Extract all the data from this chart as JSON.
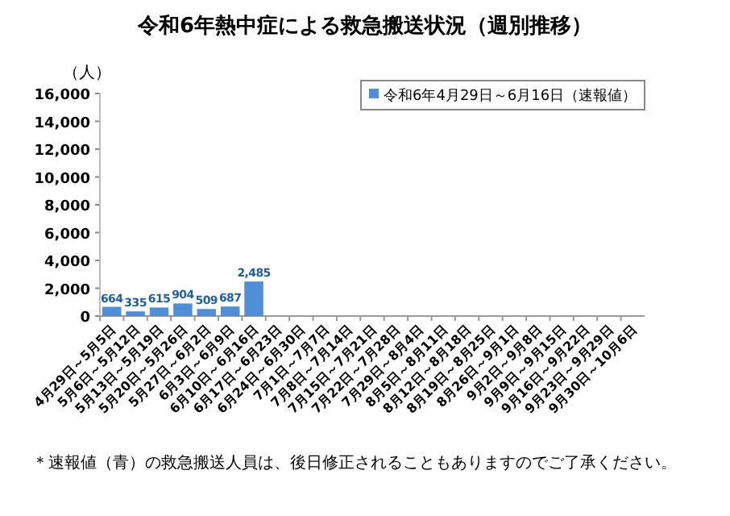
{
  "chart_data": {
    "type": "bar",
    "title": "令和6年熱中症による救急搬送状況（週別推移）",
    "ylabel": "（人）",
    "categories": [
      "4月29日～5月5日",
      "5月6日～5月12日",
      "5月13日～5月19日",
      "5月20日～5月26日",
      "5月27日～6月2日",
      "6月3日～6月9日",
      "6月10日～6月16日",
      "6月17日～6月23日",
      "6月24日～6月30日",
      "7月1日～7月7日",
      "7月8日～7月14日",
      "7月15日～7月21日",
      "7月22日～7月28日",
      "7月29日～8月4日",
      "8月5日～8月11日",
      "8月12日～8月18日",
      "8月19日～8月25日",
      "8月26日～9月1日",
      "9月2日～9月8日",
      "9月9日～9月15日",
      "9月16日～9月22日",
      "9月23日～9月29日",
      "9月30日～10月6日"
    ],
    "series": [
      {
        "name": "令和6年4月29日～6月16日（速報値）",
        "color": "#4f8fd8",
        "values": [
          664,
          335,
          615,
          904,
          509,
          687,
          2485,
          null,
          null,
          null,
          null,
          null,
          null,
          null,
          null,
          null,
          null,
          null,
          null,
          null,
          null,
          null,
          null
        ],
        "value_labels": [
          "664",
          "335",
          "615",
          "904",
          "509",
          "687",
          "2,485",
          null,
          null,
          null,
          null,
          null,
          null,
          null,
          null,
          null,
          null,
          null,
          null,
          null,
          null,
          null,
          null
        ]
      }
    ],
    "ylim": [
      0,
      16000
    ],
    "yticks": [
      {
        "value": 0,
        "label": "0"
      },
      {
        "value": 2000,
        "label": "2,000"
      },
      {
        "value": 4000,
        "label": "4,000"
      },
      {
        "value": 6000,
        "label": "6,000"
      },
      {
        "value": 8000,
        "label": "8,000"
      },
      {
        "value": 10000,
        "label": "10,000"
      },
      {
        "value": 12000,
        "label": "12,000"
      },
      {
        "value": 14000,
        "label": "14,000"
      },
      {
        "value": 16000,
        "label": "16,000"
      }
    ],
    "grid": false,
    "legend": "top right",
    "annotations": [
      "＊速報値（青）の救急搬送人員は、後日修正されることもありますのでご了承ください。"
    ]
  }
}
